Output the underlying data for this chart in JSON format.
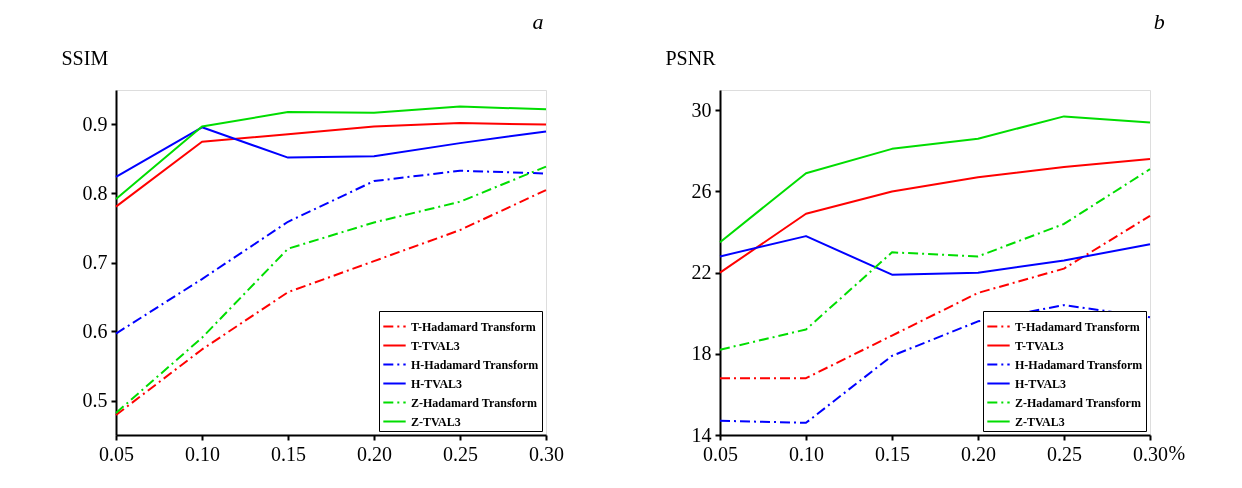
{
  "chart_data": [
    {
      "type": "line",
      "title": "a",
      "ylabel": "SSIM",
      "x": [
        0.05,
        0.1,
        0.15,
        0.2,
        0.25,
        0.3
      ],
      "xlim": [
        0.05,
        0.3
      ],
      "xticks": [
        0.05,
        {
          "value": 0.1,
          "label": "0.10"
        },
        0.15,
        {
          "value": 0.2,
          "label": "0.20"
        },
        0.25,
        {
          "value": 0.3,
          "label": "0.30"
        }
      ],
      "ylim": [
        0.45,
        0.95
      ],
      "yticks": [
        0.5,
        0.6,
        0.7,
        0.8,
        0.9
      ],
      "grid": false,
      "legend": "bottom right",
      "marker": "none",
      "series": [
        {
          "name": "T-Hadamard Transform",
          "color": "#ff0000",
          "line_style": "dashed",
          "values": [
            0.479,
            0.574,
            0.657,
            0.702,
            0.747,
            0.805
          ]
        },
        {
          "name": "T-TVAL3",
          "color": "#ff0000",
          "line_style": "solid",
          "values": [
            0.781,
            0.875,
            0.886,
            0.897,
            0.902,
            0.9
          ]
        },
        {
          "name": "H-Hadamard Transform",
          "color": "#0000ff",
          "line_style": "dashed",
          "values": [
            0.597,
            0.676,
            0.759,
            0.818,
            0.833,
            0.829
          ]
        },
        {
          "name": "H-TVAL3",
          "color": "#0000ff",
          "line_style": "solid",
          "values": [
            0.824,
            0.896,
            0.852,
            0.854,
            0.873,
            0.89
          ]
        },
        {
          "name": "Z-Hadamard Transform",
          "color": "#00dd00",
          "line_style": "dashed",
          "values": [
            0.482,
            0.591,
            0.72,
            0.758,
            0.788,
            0.839
          ]
        },
        {
          "name": "Z-TVAL3",
          "color": "#00dd00",
          "line_style": "solid",
          "values": [
            0.792,
            0.897,
            0.918,
            0.917,
            0.926,
            0.922
          ]
        }
      ]
    },
    {
      "type": "line",
      "title": "b",
      "ylabel": "PSNR",
      "xlabel": "%",
      "x": [
        0.05,
        0.1,
        0.15,
        0.2,
        0.25,
        0.3
      ],
      "xlim": [
        0.05,
        0.3
      ],
      "xticks": [
        0.05,
        {
          "value": 0.1,
          "label": "0.10"
        },
        0.15,
        {
          "value": 0.2,
          "label": "0.20"
        },
        0.25,
        {
          "value": 0.3,
          "label": "0.30"
        }
      ],
      "ylim": [
        14,
        31
      ],
      "yticks": [
        14,
        18,
        22,
        26,
        30
      ],
      "grid": false,
      "legend": "bottom right",
      "marker": "none",
      "series": [
        {
          "name": "T-Hadamard Transform",
          "color": "#ff0000",
          "line_style": "dashed",
          "values": [
            16.8,
            16.8,
            18.9,
            21.0,
            22.2,
            24.8
          ]
        },
        {
          "name": "T-TVAL3",
          "color": "#ff0000",
          "line_style": "solid",
          "values": [
            22.0,
            24.9,
            26.0,
            26.7,
            27.2,
            27.6
          ]
        },
        {
          "name": "H-Hadamard Transform",
          "color": "#0000ff",
          "line_style": "dashed",
          "values": [
            14.7,
            14.6,
            17.9,
            19.6,
            20.4,
            19.8
          ]
        },
        {
          "name": "H-TVAL3",
          "color": "#0000ff",
          "line_style": "solid",
          "values": [
            22.8,
            23.8,
            21.9,
            22.0,
            22.6,
            23.4
          ]
        },
        {
          "name": "Z-Hadamard Transform",
          "color": "#00dd00",
          "line_style": "dashed",
          "values": [
            18.2,
            19.2,
            23.0,
            22.8,
            24.4,
            27.1
          ]
        },
        {
          "name": "Z-TVAL3",
          "color": "#00dd00",
          "line_style": "solid",
          "values": [
            23.5,
            26.9,
            28.1,
            28.6,
            29.7,
            29.4
          ]
        }
      ]
    }
  ]
}
